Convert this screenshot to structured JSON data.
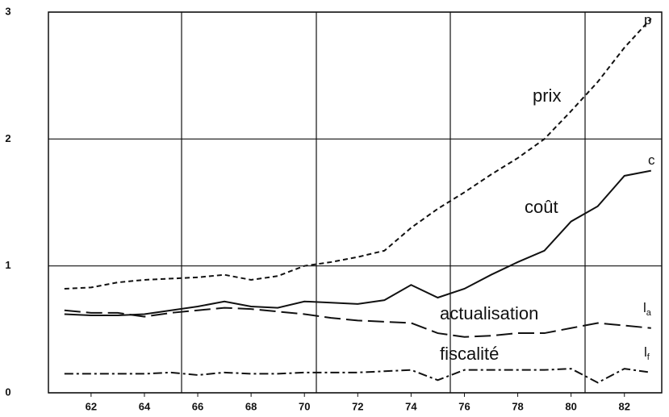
{
  "chart_data": {
    "type": "line",
    "x": [
      61,
      62,
      63,
      64,
      65,
      66,
      67,
      68,
      69,
      70,
      71,
      72,
      73,
      74,
      75,
      76,
      77,
      78,
      79,
      80,
      81,
      82,
      83
    ],
    "xlim": [
      60.4,
      83.4
    ],
    "xticks": [
      62,
      64,
      66,
      68,
      70,
      72,
      74,
      76,
      78,
      80,
      82
    ],
    "ylim": [
      0,
      3
    ],
    "yticks": [
      0,
      1,
      2,
      3
    ],
    "grid": true,
    "series": [
      {
        "name": "prix",
        "label": "p",
        "color": "#111",
        "style": "dashed",
        "values": [
          0.82,
          0.83,
          0.87,
          0.89,
          0.9,
          0.91,
          0.93,
          0.89,
          0.92,
          1.0,
          1.03,
          1.07,
          1.12,
          1.3,
          1.45,
          1.58,
          1.72,
          1.85,
          2.0,
          2.22,
          2.45,
          2.72,
          2.95
        ]
      },
      {
        "name": "coût",
        "label": "c",
        "color": "#111",
        "style": "solid",
        "values": [
          0.62,
          0.61,
          0.61,
          0.62,
          0.65,
          0.68,
          0.72,
          0.68,
          0.67,
          0.72,
          0.71,
          0.7,
          0.73,
          0.85,
          0.75,
          0.82,
          0.93,
          1.03,
          1.12,
          1.35,
          1.47,
          1.71,
          1.75
        ]
      },
      {
        "name": "actualisation",
        "label": "l",
        "label_sub": "a",
        "color": "#111",
        "style": "longdash",
        "values": [
          0.65,
          0.63,
          0.63,
          0.6,
          0.63,
          0.65,
          0.67,
          0.66,
          0.64,
          0.62,
          0.59,
          0.57,
          0.56,
          0.55,
          0.47,
          0.44,
          0.45,
          0.47,
          0.47,
          0.51,
          0.55,
          0.53,
          0.51
        ]
      },
      {
        "name": "fiscalité",
        "label": "l",
        "label_sub": "f",
        "color": "#111",
        "style": "dashdot",
        "values": [
          0.15,
          0.15,
          0.15,
          0.15,
          0.16,
          0.14,
          0.16,
          0.15,
          0.15,
          0.16,
          0.16,
          0.16,
          0.17,
          0.18,
          0.1,
          0.18,
          0.18,
          0.18,
          0.18,
          0.19,
          0.08,
          0.19,
          0.16
        ]
      }
    ]
  }
}
